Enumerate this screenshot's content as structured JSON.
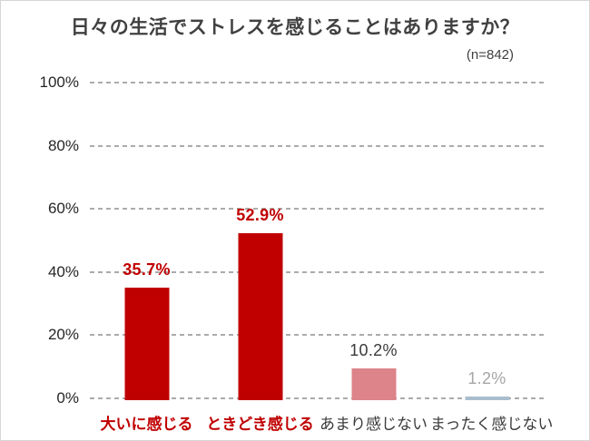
{
  "chart_data": {
    "type": "bar",
    "title": "日々の生活でストレスを感じることはありますか？",
    "subtitle": "(n=842)",
    "xlabel": "",
    "ylabel": "",
    "ylim": [
      0,
      100
    ],
    "grid": "horizontal-dashed",
    "legend": "none",
    "categories": [
      "大いに感じる",
      "ときどき感じる",
      "あまり感じない",
      "まったく感じない"
    ],
    "values": [
      35.7,
      52.9,
      10.2,
      1.2
    ],
    "y_axis": {
      "ticks": [
        "100%",
        "80%",
        "60%",
        "40%",
        "20%",
        "0%"
      ],
      "min": 0,
      "max": 100,
      "step": 20
    },
    "bars": [
      {
        "category": "大いに感じる",
        "value": 35.7,
        "label": "35.7%",
        "bar_color": "#c00000",
        "label_color": "#c00000",
        "category_color": "#c00000",
        "bold": true
      },
      {
        "category": "ときどき感じる",
        "value": 52.9,
        "label": "52.9%",
        "bar_color": "#c00000",
        "label_color": "#c00000",
        "category_color": "#c00000",
        "bold": true
      },
      {
        "category": "あまり感じない",
        "value": 10.2,
        "label": "10.2%",
        "bar_color": "#dd838a",
        "label_color": "#3a3a3a",
        "category_color": "#3a3a3a",
        "bold": false
      },
      {
        "category": "まったく感じない",
        "value": 1.2,
        "label": "1.2%",
        "bar_color": "#a9becd",
        "label_color": "#a6a6a6",
        "category_color": "#3a3a3a",
        "bold": false
      }
    ],
    "colors": {
      "accent_red": "#c00000",
      "pink": "#dd838a",
      "blue_gray": "#a9becd",
      "gridline": "#ababab",
      "title_text": "#404040",
      "axis_text": "#262626",
      "muted_text": "#a6a6a6"
    }
  }
}
